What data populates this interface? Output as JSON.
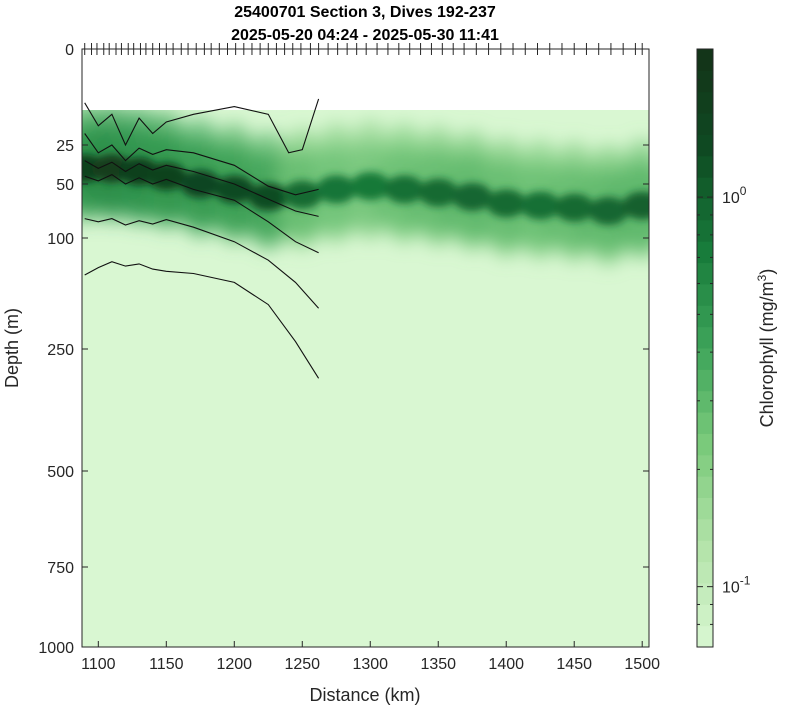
{
  "chart_data": {
    "type": "heatmap",
    "title": "25400701 Section 3, Dives 192-237",
    "subtitle": "2025-05-20 04:24 - 2025-05-30 11:41",
    "xlabel": "Distance (km)",
    "ylabel": "Depth (m)",
    "xlim": [
      1088,
      1505
    ],
    "x_ticks": [
      1100,
      1150,
      1200,
      1250,
      1300,
      1350,
      1400,
      1450,
      1500
    ],
    "x_tick_labels": [
      "1100",
      "1150",
      "1200",
      "1250",
      "1300",
      "1350",
      "1400",
      "1450",
      "1500"
    ],
    "y_ticks": [
      0,
      25,
      50,
      100,
      250,
      500,
      750,
      1000
    ],
    "y_tick_labels": [
      "0",
      "25",
      "50",
      "100",
      "250",
      "500",
      "750",
      "1000"
    ],
    "y_reversed": true,
    "colorbar": {
      "label": "Chlorophyll (mg/m³)",
      "label_main": "Chlorophyll (mg/m",
      "label_sup": "3",
      "label_close": ")",
      "scale": "log",
      "range": [
        0.07,
        2.4
      ],
      "tick_values": [
        0.1,
        1.0
      ],
      "tick_base": [
        "10",
        "10"
      ],
      "tick_exp": [
        "-1",
        "0"
      ],
      "colors": [
        "#d9f7d2",
        "#b4e3aa",
        "#7ccb7c",
        "#3ea55a",
        "#177a3a",
        "#0f4a22",
        "#143218"
      ]
    },
    "dive_ticks_km": [
      1090,
      1095,
      1099,
      1104,
      1108,
      1113,
      1117,
      1122,
      1126,
      1131,
      1135,
      1140,
      1145,
      1150,
      1155,
      1161,
      1166,
      1172,
      1178,
      1183,
      1189,
      1195,
      1201,
      1207,
      1213,
      1219,
      1225,
      1231,
      1237,
      1243,
      1249,
      1256,
      1262,
      1269,
      1276,
      1283,
      1290,
      1297,
      1305,
      1313,
      1321,
      1329,
      1337,
      1345,
      1353,
      1361,
      1369,
      1378,
      1387,
      1396,
      1405,
      1414,
      1423,
      1432,
      1441,
      1450,
      1459,
      1468,
      1477,
      1486,
      1495,
      1500
    ],
    "top_of_data_depth_m": 15,
    "chlorophyll_max_layer": [
      {
        "x": 1090,
        "depth": 40,
        "value": 1.6
      },
      {
        "x": 1110,
        "depth": 40,
        "value": 1.8
      },
      {
        "x": 1130,
        "depth": 42,
        "value": 1.7
      },
      {
        "x": 1150,
        "depth": 45,
        "value": 1.6
      },
      {
        "x": 1175,
        "depth": 50,
        "value": 1.5
      },
      {
        "x": 1200,
        "depth": 55,
        "value": 1.4
      },
      {
        "x": 1225,
        "depth": 62,
        "value": 1.3
      },
      {
        "x": 1250,
        "depth": 60,
        "value": 0.9
      },
      {
        "x": 1275,
        "depth": 55,
        "value": 0.8
      },
      {
        "x": 1300,
        "depth": 52,
        "value": 0.75
      },
      {
        "x": 1325,
        "depth": 55,
        "value": 0.85
      },
      {
        "x": 1350,
        "depth": 58,
        "value": 0.9
      },
      {
        "x": 1375,
        "depth": 62,
        "value": 0.95
      },
      {
        "x": 1400,
        "depth": 68,
        "value": 0.9
      },
      {
        "x": 1425,
        "depth": 70,
        "value": 0.85
      },
      {
        "x": 1450,
        "depth": 72,
        "value": 0.9
      },
      {
        "x": 1475,
        "depth": 75,
        "value": 0.95
      },
      {
        "x": 1500,
        "depth": 70,
        "value": 1.0
      }
    ],
    "contour_lines": [
      {
        "x": [
          1090,
          1100,
          1110,
          1120,
          1130,
          1140,
          1150,
          1170,
          1200,
          1225,
          1240,
          1250,
          1262
        ],
        "depth": [
          14,
          20,
          17,
          25,
          18,
          22,
          19,
          17,
          15,
          17,
          30,
          28,
          13
        ]
      },
      {
        "x": [
          1090,
          1100,
          1110,
          1120,
          1130,
          1140,
          1150,
          1170,
          1200,
          1225,
          1245,
          1262
        ],
        "depth": [
          22,
          30,
          25,
          35,
          27,
          31,
          28,
          30,
          38,
          52,
          60,
          55
        ]
      },
      {
        "x": [
          1090,
          1100,
          1110,
          1120,
          1130,
          1140,
          1150,
          1170,
          1200,
          1225,
          1245,
          1262
        ],
        "depth": [
          35,
          40,
          36,
          42,
          37,
          41,
          38,
          42,
          50,
          64,
          75,
          80
        ]
      },
      {
        "x": [
          1090,
          1100,
          1110,
          1120,
          1130,
          1140,
          1150,
          1170,
          1200,
          1225,
          1245,
          1262
        ],
        "depth": [
          45,
          48,
          44,
          50,
          46,
          50,
          47,
          55,
          65,
          85,
          105,
          120
        ]
      },
      {
        "x": [
          1090,
          1100,
          1110,
          1120,
          1130,
          1140,
          1150,
          1170,
          1200,
          1225,
          1245,
          1262
        ],
        "depth": [
          82,
          85,
          82,
          88,
          84,
          87,
          83,
          90,
          105,
          130,
          160,
          195
        ]
      },
      {
        "x": [
          1090,
          1100,
          1110,
          1120,
          1130,
          1140,
          1150,
          1170,
          1200,
          1225,
          1245,
          1262
        ],
        "depth": [
          150,
          140,
          132,
          138,
          135,
          142,
          145,
          148,
          160,
          190,
          240,
          310
        ]
      }
    ]
  }
}
